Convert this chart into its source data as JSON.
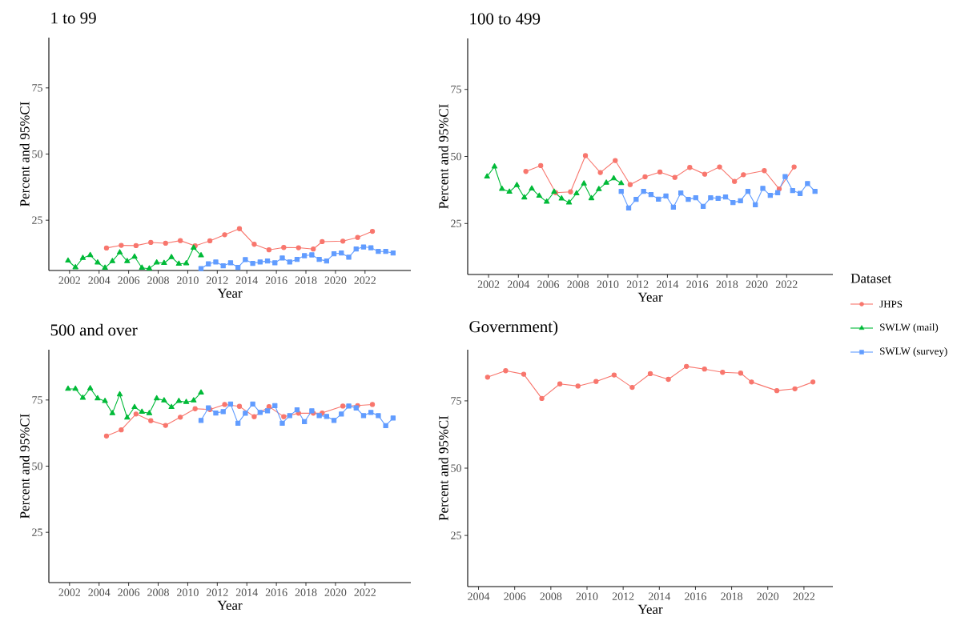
{
  "chart_data": [
    {
      "type": "line",
      "title": "1 to 99",
      "xlabel": "Year",
      "ylabel": "Percent and 95%CI",
      "xlim": [
        2000.6,
        2025.1
      ],
      "ylim": [
        6,
        94
      ],
      "xticks": [
        2002,
        2004,
        2006,
        2008,
        2010,
        2012,
        2014,
        2016,
        2018,
        2020,
        2022
      ],
      "yticks": [
        25,
        50,
        75
      ],
      "series": [
        {
          "color": "#f8766d",
          "marker": "circle",
          "x": [
            2004.5,
            2005.5,
            2006.5,
            2007.5,
            2008.5,
            2009.5,
            2010.5,
            2011.5,
            2012.5,
            2013.5,
            2014.5,
            2015.5,
            2016.5,
            2017.5,
            2018.5,
            2019.1,
            2020.5,
            2021.5,
            2022.5
          ],
          "values": [
            14.5,
            15.5,
            15.4,
            16.6,
            16.3,
            17.3,
            15.3,
            17.2,
            19.5,
            21.8,
            15.9,
            13.8,
            14.7,
            14.6,
            14.1,
            16.9,
            17.1,
            18.5,
            20.8
          ]
        },
        {
          "color": "#00ba38",
          "marker": "triangle",
          "x": [
            2001.9,
            2002.4,
            2002.9,
            2003.4,
            2003.9,
            2004.4,
            2004.9,
            2005.4,
            2005.9,
            2006.4,
            2006.9,
            2007.4,
            2007.9,
            2008.4,
            2008.9,
            2009.4,
            2009.9,
            2010.4,
            2010.9
          ],
          "values": [
            9.7,
            7.2,
            10.7,
            11.8,
            9.0,
            7.0,
            9.5,
            12.8,
            9.5,
            11.2,
            7.0,
            6.7,
            9.0,
            8.8,
            11.0,
            8.5,
            8.7,
            14.6,
            11.7
          ]
        },
        {
          "color": "#619cff",
          "marker": "square",
          "x": [
            2010.9,
            2011.4,
            2011.9,
            2012.4,
            2012.9,
            2013.4,
            2013.9,
            2014.4,
            2014.9,
            2015.4,
            2015.9,
            2016.4,
            2016.9,
            2017.4,
            2017.9,
            2018.4,
            2018.9,
            2019.4,
            2019.9,
            2020.4,
            2020.9,
            2021.4,
            2021.9,
            2022.4,
            2022.9,
            2023.4,
            2023.9
          ],
          "values": [
            6.7,
            8.5,
            9.2,
            7.8,
            8.9,
            7.2,
            10.1,
            8.7,
            9.2,
            9.6,
            8.9,
            10.7,
            9.2,
            10.2,
            11.6,
            11.9,
            10.2,
            9.6,
            12.3,
            12.6,
            11.0,
            14.1,
            14.9,
            14.6,
            13.2,
            13.2,
            12.6
          ]
        }
      ]
    },
    {
      "type": "line",
      "title": "100 to 499",
      "xlabel": "Year",
      "ylabel": "Percent and 95%CI",
      "xlim": [
        2000.6,
        2025.1
      ],
      "ylim": [
        6,
        94
      ],
      "xticks": [
        2002,
        2004,
        2006,
        2008,
        2010,
        2012,
        2014,
        2016,
        2018,
        2020,
        2022
      ],
      "yticks": [
        25,
        50,
        75
      ],
      "legend": "right",
      "legend_title": "Dataset",
      "series": [
        {
          "name": "JHPS",
          "color": "#f8766d",
          "marker": "circle",
          "x": [
            2004.5,
            2005.5,
            2006.5,
            2007.5,
            2008.5,
            2009.5,
            2010.5,
            2011.5,
            2012.5,
            2013.5,
            2014.5,
            2015.5,
            2016.5,
            2017.5,
            2018.5,
            2019.1,
            2020.5,
            2021.5,
            2022.5
          ],
          "values": [
            44.4,
            46.6,
            36.5,
            36.8,
            50.3,
            44.0,
            48.5,
            39.5,
            42.4,
            44.2,
            42.2,
            45.9,
            43.4,
            46.1,
            40.7,
            43.2,
            44.7,
            37.9,
            46.1
          ]
        },
        {
          "name": "SWLW (mail)",
          "color": "#00ba38",
          "marker": "triangle",
          "x": [
            2001.9,
            2002.4,
            2002.9,
            2003.4,
            2003.9,
            2004.4,
            2004.9,
            2005.4,
            2005.9,
            2006.4,
            2006.9,
            2007.4,
            2007.9,
            2008.4,
            2008.9,
            2009.4,
            2009.9,
            2010.4,
            2010.9
          ],
          "values": [
            42.5,
            46.2,
            37.9,
            36.8,
            39.3,
            34.7,
            38.0,
            35.3,
            33.1,
            36.8,
            34.3,
            32.8,
            36.2,
            39.9,
            34.4,
            37.8,
            40.2,
            41.8,
            40.0
          ]
        },
        {
          "name": "SWLW (survey)",
          "color": "#619cff",
          "marker": "square",
          "x": [
            2010.9,
            2011.4,
            2011.9,
            2012.4,
            2012.9,
            2013.4,
            2013.9,
            2014.4,
            2014.9,
            2015.4,
            2015.9,
            2016.4,
            2016.9,
            2017.4,
            2017.9,
            2018.4,
            2018.9,
            2019.4,
            2019.9,
            2020.4,
            2020.9,
            2021.4,
            2021.9,
            2022.4,
            2022.9,
            2023.4,
            2023.9
          ],
          "values": [
            37.0,
            30.8,
            34.0,
            37.0,
            35.8,
            34.1,
            35.3,
            31.1,
            36.4,
            34.0,
            34.6,
            31.4,
            34.6,
            34.4,
            34.9,
            32.8,
            33.5,
            37.0,
            32.0,
            38.1,
            35.5,
            36.5,
            42.5,
            37.3,
            36.2,
            39.9,
            37.0
          ]
        }
      ]
    },
    {
      "type": "line",
      "title": "500 and over",
      "xlabel": "Year",
      "ylabel": "Percent and 95%CI",
      "xlim": [
        2000.6,
        2025.1
      ],
      "ylim": [
        6,
        94
      ],
      "xticks": [
        2002,
        2004,
        2006,
        2008,
        2010,
        2012,
        2014,
        2016,
        2018,
        2020,
        2022
      ],
      "yticks": [
        25,
        50,
        75
      ],
      "series": [
        {
          "color": "#f8766d",
          "marker": "circle",
          "x": [
            2004.5,
            2005.5,
            2006.5,
            2007.5,
            2008.5,
            2009.5,
            2010.5,
            2011.5,
            2012.5,
            2013.5,
            2014.5,
            2015.5,
            2016.5,
            2017.5,
            2018.5,
            2019.1,
            2020.5,
            2021.5,
            2022.5
          ],
          "values": [
            61.4,
            63.7,
            69.7,
            67.2,
            65.4,
            68.5,
            71.7,
            71.4,
            73.3,
            72.6,
            68.7,
            72.5,
            68.7,
            70.0,
            70.0,
            70.1,
            72.7,
            72.9,
            73.3
          ]
        },
        {
          "color": "#00ba38",
          "marker": "triangle",
          "x": [
            2001.9,
            2002.4,
            2002.9,
            2003.4,
            2003.9,
            2004.4,
            2004.9,
            2005.4,
            2005.9,
            2006.4,
            2006.9,
            2007.4,
            2007.9,
            2008.4,
            2008.9,
            2009.4,
            2009.9,
            2010.4,
            2010.9
          ],
          "values": [
            79.2,
            79.2,
            75.8,
            79.4,
            75.6,
            74.6,
            70.0,
            77.1,
            68.3,
            72.3,
            70.5,
            70.0,
            75.6,
            74.8,
            72.3,
            74.6,
            74.2,
            74.8,
            77.8
          ]
        },
        {
          "color": "#619cff",
          "marker": "square",
          "x": [
            2010.9,
            2011.4,
            2011.9,
            2012.4,
            2012.9,
            2013.4,
            2013.9,
            2014.4,
            2014.9,
            2015.4,
            2015.9,
            2016.4,
            2016.9,
            2017.4,
            2017.9,
            2018.4,
            2018.9,
            2019.4,
            2019.9,
            2020.4,
            2020.9,
            2021.4,
            2021.9,
            2022.4,
            2022.9,
            2023.4,
            2023.9
          ],
          "values": [
            67.3,
            72.0,
            70.1,
            70.6,
            73.5,
            66.2,
            70.0,
            73.5,
            70.3,
            70.9,
            72.9,
            66.2,
            69.1,
            71.3,
            66.8,
            70.9,
            69.1,
            68.8,
            67.3,
            69.7,
            72.7,
            72.0,
            69.1,
            70.3,
            69.1,
            65.3,
            68.2
          ]
        }
      ]
    },
    {
      "type": "line",
      "title": "Government)",
      "xlabel": "Year",
      "ylabel": "Percent and 95%CI",
      "xlim": [
        2003.4,
        2023.6
      ],
      "ylim": [
        6,
        94
      ],
      "xticks": [
        2004,
        2006,
        2008,
        2010,
        2012,
        2014,
        2016,
        2018,
        2020,
        2022
      ],
      "yticks": [
        25,
        50,
        75
      ],
      "series": [
        {
          "color": "#f8766d",
          "marker": "circle",
          "x": [
            2004.5,
            2005.5,
            2006.5,
            2007.5,
            2008.5,
            2009.5,
            2010.5,
            2011.5,
            2012.5,
            2013.5,
            2014.5,
            2015.5,
            2016.5,
            2017.5,
            2018.5,
            2019.1,
            2020.5,
            2021.5,
            2022.5
          ],
          "values": [
            83.8,
            86.2,
            84.9,
            75.9,
            81.3,
            80.5,
            82.2,
            84.6,
            80.0,
            85.1,
            83.0,
            87.8,
            86.8,
            85.6,
            85.3,
            82.0,
            78.8,
            79.5,
            82.0
          ]
        }
      ]
    }
  ]
}
